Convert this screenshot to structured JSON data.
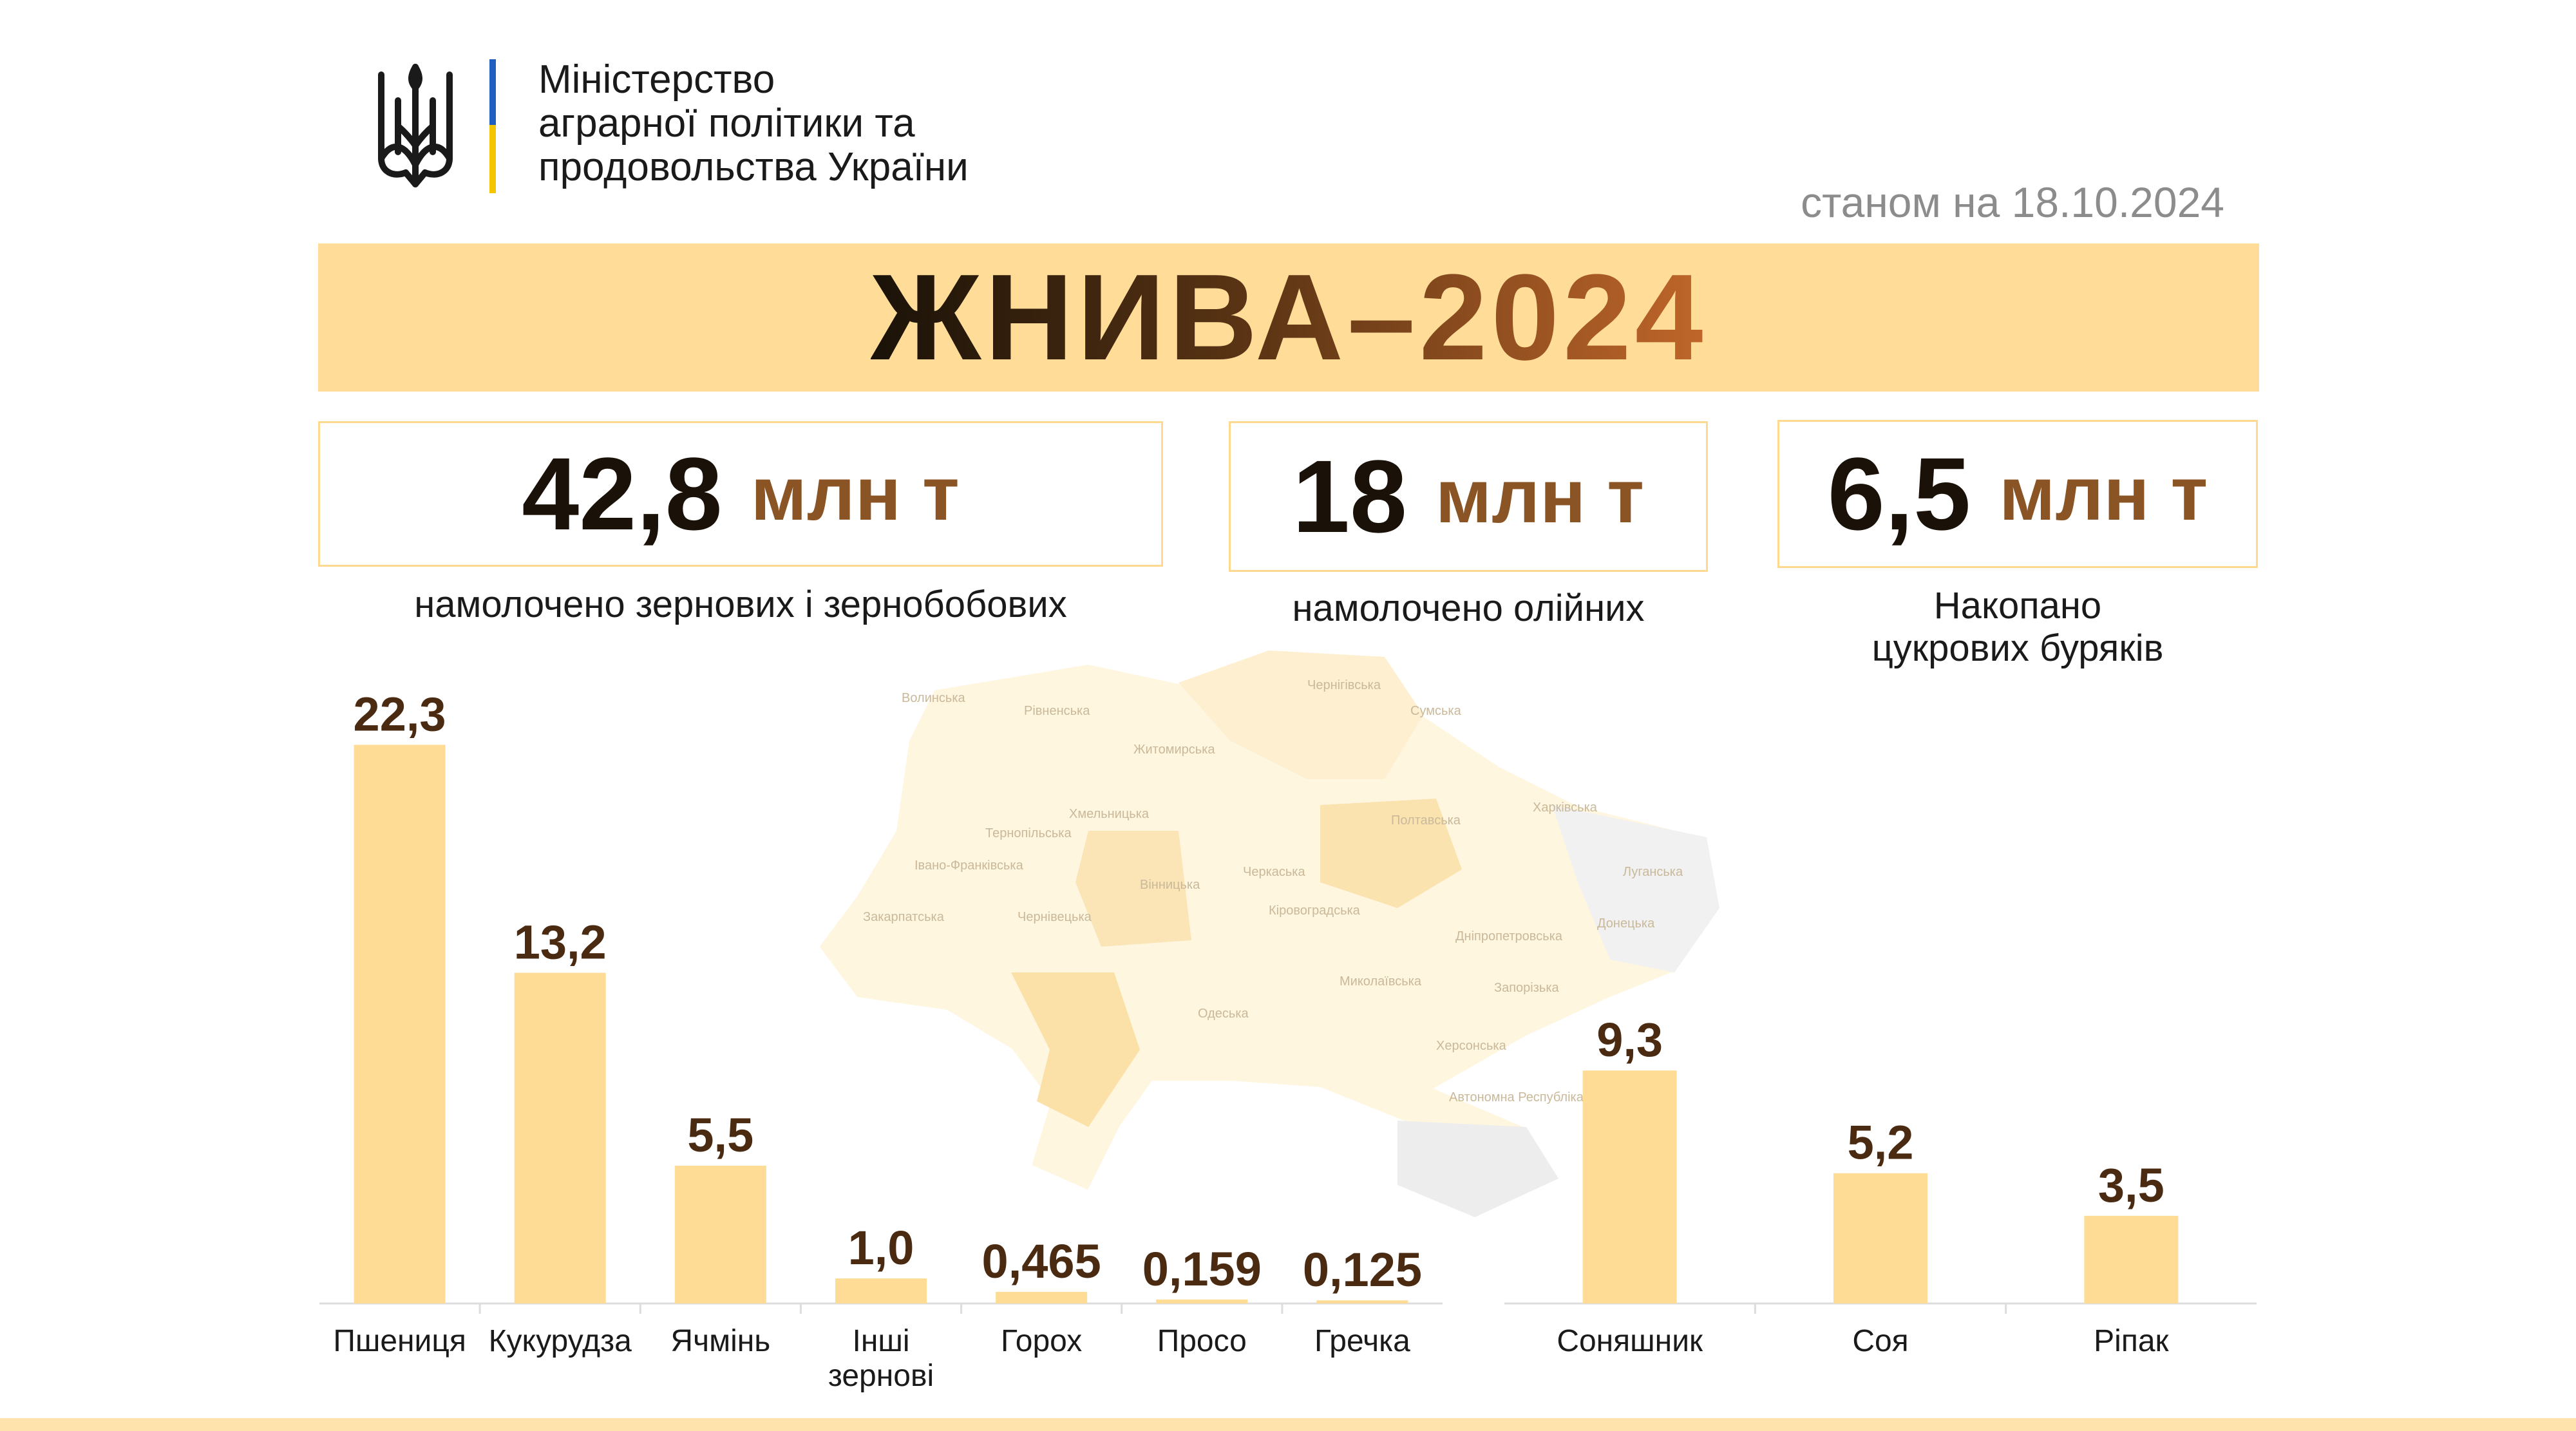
{
  "header": {
    "ministry_lines": [
      "Міністерство",
      "аграрної політики та",
      "продовольства України"
    ],
    "date": "станом на 18.10.2024",
    "title": "ЖНИВА–2024"
  },
  "stats": [
    {
      "value": "42,8",
      "unit": "млн т",
      "caption": "намолочено зернових і зернобобових"
    },
    {
      "value": "18",
      "unit": "млн т",
      "caption": "намолочено олійних"
    },
    {
      "value": "6,5",
      "unit": "млн т",
      "caption_lines": [
        "Накопано",
        "цукрових буряків"
      ]
    }
  ],
  "map": {
    "regions": [
      "Волинська",
      "Рівненська",
      "Житомирська",
      "Чернігівська",
      "Сумська",
      "Хмельницька",
      "Тернопільська",
      "Івано-Франківська",
      "Закарпатська",
      "Чернівецька",
      "Вінницька",
      "Черкаська",
      "Полтавська",
      "Харківська",
      "Луганська",
      "Кіровоградська",
      "Дніпропетровська",
      "Донецька",
      "Миколаївська",
      "Одеська",
      "Запорізька",
      "Херсонська",
      "Автономна Республіка Крим"
    ]
  },
  "chart_data": [
    {
      "type": "bar",
      "categories": [
        "Пшениця",
        "Кукурудза",
        "Ячмінь",
        "Інші зернові",
        "Горох",
        "Просо",
        "Гречка"
      ],
      "values": [
        22.3,
        13.2,
        5.5,
        1.0,
        0.465,
        0.159,
        0.125
      ],
      "labels": [
        "22,3",
        "13,2",
        "5,5",
        "1,0",
        "0,465",
        "0,159",
        "0,125"
      ],
      "bar_color": "#ffdc96"
    },
    {
      "type": "bar",
      "categories": [
        "Соняшник",
        "Соя",
        "Ріпак"
      ],
      "values": [
        9.3,
        5.2,
        3.5
      ],
      "labels": [
        "9,3",
        "5,2",
        "3,5"
      ],
      "bar_color": "#ffdc96"
    }
  ],
  "colors": {
    "banner": "#ffdd99",
    "accent_brown": "#8a5424",
    "label_brown": "#4a2a10"
  }
}
